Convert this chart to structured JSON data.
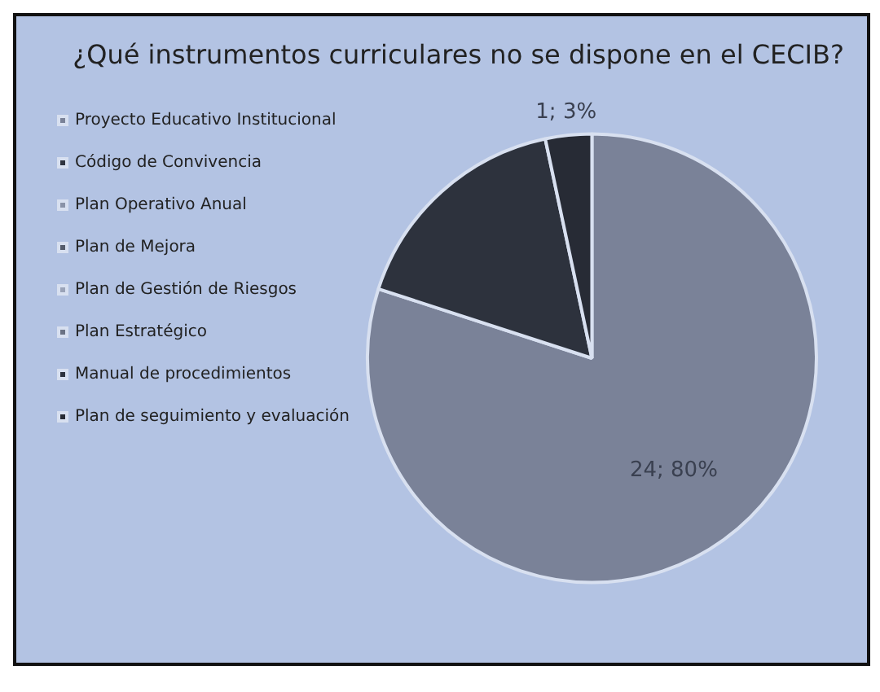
{
  "chart_data": {
    "type": "pie",
    "title": "¿Qué instrumentos curriculares no se dispone en el CECIB?",
    "categories": [
      "Proyecto Educativo Institucional",
      "Código de Convivencia",
      "Plan Operativo Anual",
      "Plan de Mejora",
      "Plan de Gestión de Riesgos",
      "Plan Estratégico",
      "Manual de procedimientos",
      "Plan de seguimiento y evaluación"
    ],
    "values": [
      24,
      0,
      0,
      0,
      0,
      0,
      5,
      1
    ],
    "colors": [
      "#7a8298",
      "#2f3440",
      "#8a93a8",
      "#555c6c",
      "#9aa3b8",
      "#6a7284",
      "#2d323d",
      "#272b35"
    ],
    "value_labels": [
      "24; 80%",
      null,
      null,
      null,
      null,
      null,
      null,
      "1; 3%"
    ],
    "legend": "left"
  }
}
